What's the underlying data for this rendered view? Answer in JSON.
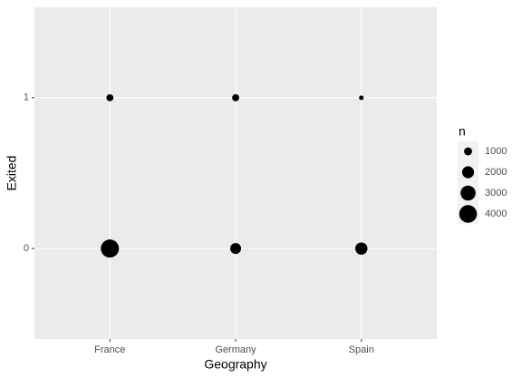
{
  "chart_data": {
    "type": "scatter",
    "x_label": "Geography",
    "y_label": "Exited",
    "categories": [
      "France",
      "Germany",
      "Spain"
    ],
    "x": [
      "France",
      "Germany",
      "Spain",
      "France",
      "Germany",
      "Spain"
    ],
    "values": [
      1,
      1,
      1,
      0,
      0,
      0
    ],
    "sizes": [
      810,
      814,
      413,
      4204,
      1695,
      2064
    ],
    "color": "#000000",
    "ylim": [
      -0.6,
      1.6
    ],
    "yticks": [
      0,
      1
    ],
    "grid": true,
    "size_label": "n",
    "size_ticks": [
      1000,
      2000,
      3000,
      4000
    ],
    "legend": "right"
  }
}
